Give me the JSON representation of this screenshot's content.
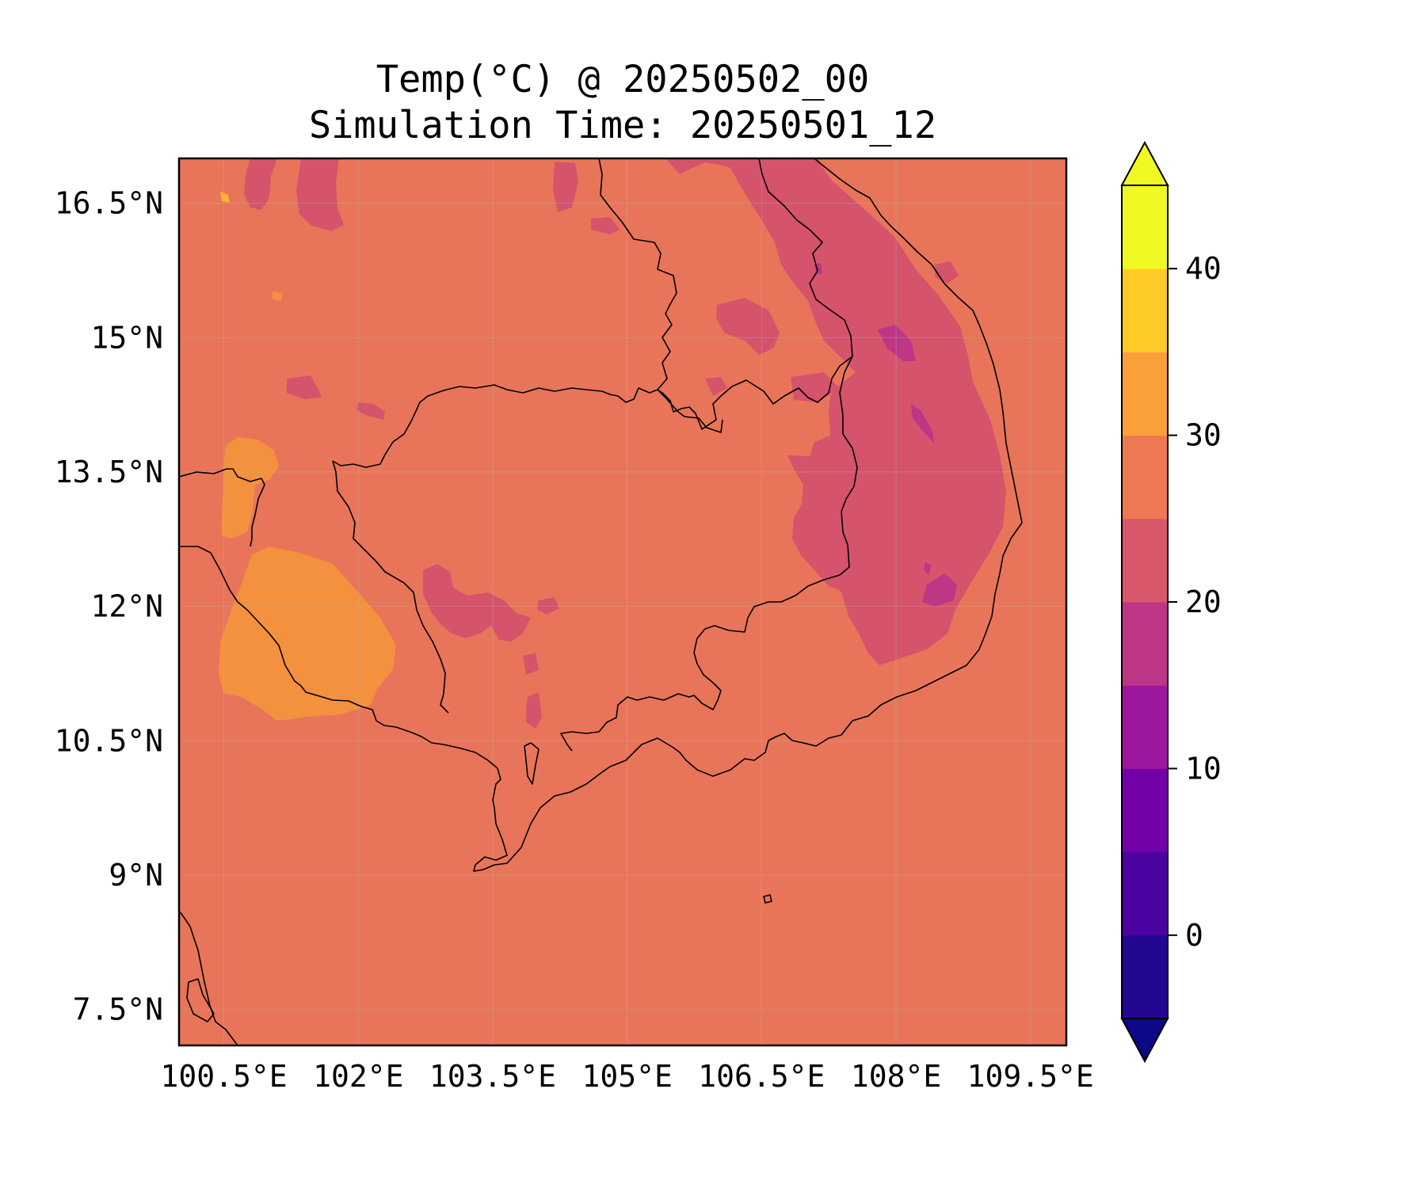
{
  "map": {
    "title_line1": "Temp(°C) @ 20250502_00",
    "title_line2": "Simulation Time: 20250501_12",
    "extent": {
      "lon_min": 100.0,
      "lon_max": 109.9,
      "lat_min": 7.1,
      "lat_max": 17.0
    },
    "lon_ticks": [
      {
        "value": 100.5,
        "label": "100.5°E"
      },
      {
        "value": 102.0,
        "label": "102°E"
      },
      {
        "value": 103.5,
        "label": "103.5°E"
      },
      {
        "value": 105.0,
        "label": "105°E"
      },
      {
        "value": 106.5,
        "label": "106.5°E"
      },
      {
        "value": 108.0,
        "label": "108°E"
      },
      {
        "value": 109.5,
        "label": "109.5°E"
      }
    ],
    "lat_ticks": [
      {
        "value": 16.5,
        "label": "16.5°N"
      },
      {
        "value": 15.0,
        "label": "15°N"
      },
      {
        "value": 13.5,
        "label": "13.5°N"
      },
      {
        "value": 12.0,
        "label": "12°N"
      },
      {
        "value": 10.5,
        "label": "10.5°N"
      },
      {
        "value": 9.0,
        "label": "9°N"
      },
      {
        "value": 7.5,
        "label": "7.5°N"
      }
    ],
    "background_level_color": "#e8755a",
    "colors": {
      "band_20_25": "#d6536c",
      "band_15_20": "#bd3786",
      "band_30_35": "#f48f44",
      "band_35_40": "#fdb32f"
    }
  },
  "colorbar": {
    "levels": [
      -5,
      0,
      5,
      10,
      15,
      20,
      25,
      30,
      35,
      40,
      45
    ],
    "colors": [
      "#220690",
      "#4a02a0",
      "#7201a8",
      "#9c179e",
      "#bd3786",
      "#d8576b",
      "#ed7953",
      "#fb9f3a",
      "#fdca26",
      "#f0f921"
    ],
    "under_color": "#0d0887",
    "over_color": "#f0f921",
    "ticks": [
      {
        "value": 0,
        "label": "0"
      },
      {
        "value": 10,
        "label": "10"
      },
      {
        "value": 20,
        "label": "20"
      },
      {
        "value": 30,
        "label": "30"
      },
      {
        "value": 40,
        "label": "40"
      }
    ]
  }
}
